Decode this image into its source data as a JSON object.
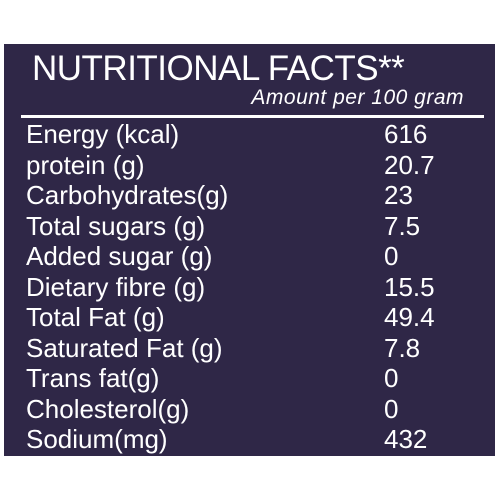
{
  "panel": {
    "title": "NUTRITIONAL FACTS**",
    "subtitle": "Amount per 100 gram",
    "background_color": "#2f2747",
    "text_color": "#ffffff"
  },
  "rows": [
    {
      "label": "Energy (kcal)",
      "value": "616"
    },
    {
      "label": "protein (g)",
      "value": "20.7"
    },
    {
      "label": "Carbohydrates(g)",
      "value": "23"
    },
    {
      "label": "Total sugars (g)",
      "value": "7.5"
    },
    {
      "label": "Added sugar (g)",
      "value": "0"
    },
    {
      "label": "Dietary fibre (g)",
      "value": "15.5"
    },
    {
      "label": "Total Fat (g)",
      "value": "49.4"
    },
    {
      "label": "Saturated Fat (g)",
      "value": "7.8"
    },
    {
      "label": "Trans fat(g)",
      "value": "0"
    },
    {
      "label": "Cholesterol(g)",
      "value": "0"
    },
    {
      "label": "Sodium(mg)",
      "value": "432"
    }
  ]
}
